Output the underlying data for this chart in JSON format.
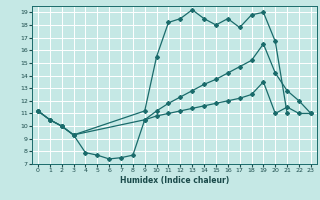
{
  "xlabel": "Humidex (Indice chaleur)",
  "bg_color": "#c5e8e5",
  "grid_color": "#ffffff",
  "line_color": "#1a6b6b",
  "xlim": [
    -0.5,
    23.5
  ],
  "ylim": [
    7,
    19.5
  ],
  "yticks": [
    7,
    8,
    9,
    10,
    11,
    12,
    13,
    14,
    15,
    16,
    17,
    18,
    19
  ],
  "xticks": [
    0,
    1,
    2,
    3,
    4,
    5,
    6,
    7,
    8,
    9,
    10,
    11,
    12,
    13,
    14,
    15,
    16,
    17,
    18,
    19,
    20,
    21,
    22,
    23
  ],
  "line_top_x": [
    0,
    1,
    2,
    3,
    9,
    10,
    11,
    12,
    13,
    14,
    15,
    16,
    17,
    18,
    19,
    20,
    21
  ],
  "line_top_y": [
    11.2,
    10.5,
    10.0,
    9.3,
    11.2,
    15.5,
    18.2,
    18.5,
    19.2,
    18.5,
    18.0,
    18.5,
    17.8,
    18.8,
    19.0,
    16.7,
    11.0
  ],
  "line_mid_x": [
    0,
    1,
    2,
    3,
    9,
    10,
    11,
    12,
    13,
    14,
    15,
    16,
    17,
    18,
    19,
    20,
    21,
    22,
    23
  ],
  "line_mid_y": [
    11.2,
    10.5,
    10.0,
    9.3,
    10.5,
    11.2,
    11.8,
    12.3,
    12.8,
    13.3,
    13.7,
    14.2,
    14.7,
    15.2,
    16.5,
    14.2,
    12.8,
    12.0,
    11.0
  ],
  "line_bot_x": [
    0,
    1,
    2,
    3,
    4,
    5,
    6,
    7,
    8,
    9,
    10,
    11,
    12,
    13,
    14,
    15,
    16,
    17,
    18,
    19,
    20,
    21,
    22,
    23
  ],
  "line_bot_y": [
    11.2,
    10.5,
    10.0,
    9.3,
    7.9,
    7.7,
    7.4,
    7.5,
    7.7,
    10.5,
    10.8,
    11.0,
    11.2,
    11.4,
    11.6,
    11.8,
    12.0,
    12.2,
    12.5,
    13.5,
    11.0,
    11.5,
    11.0,
    11.0
  ]
}
